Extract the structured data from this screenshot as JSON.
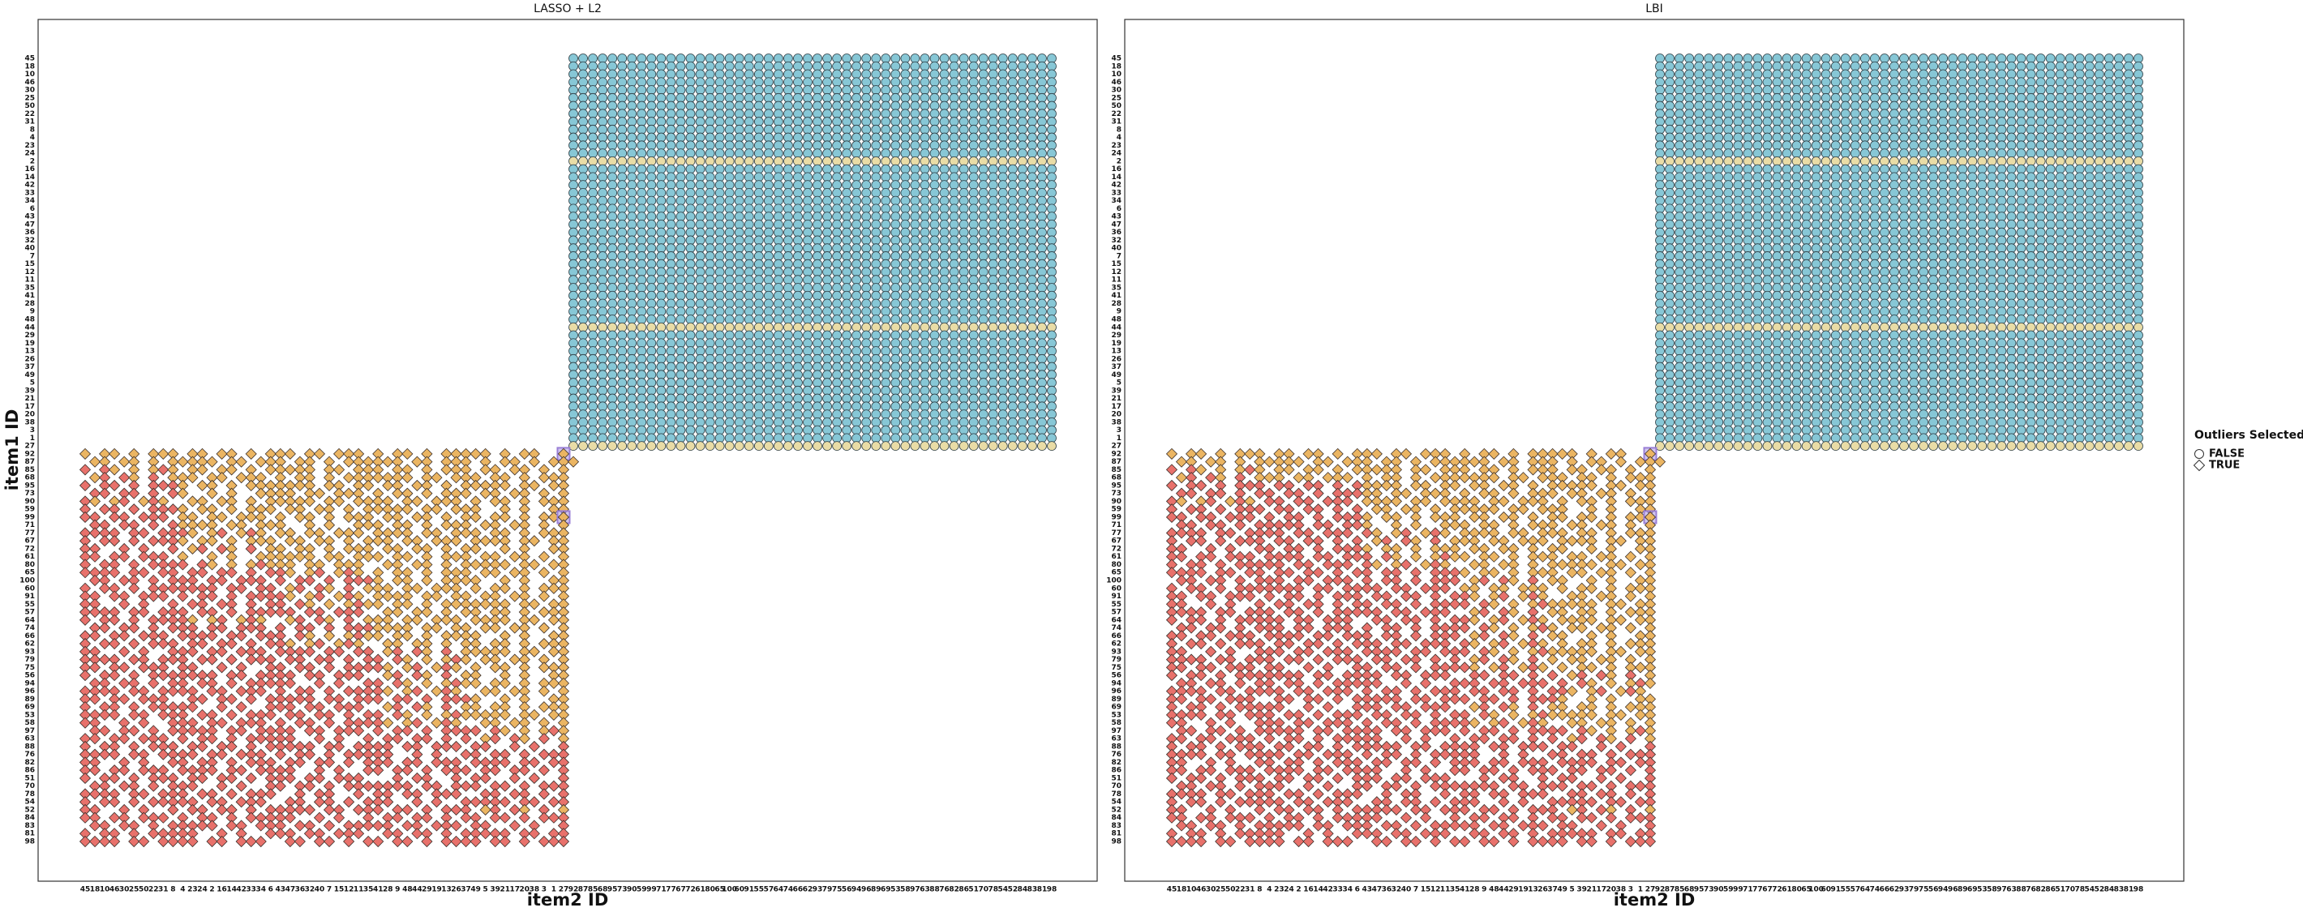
{
  "legend": {
    "title": "Outliers Selected",
    "entries": [
      "FALSE",
      "TRUE"
    ],
    "shapes": [
      "circle",
      "diamond"
    ]
  },
  "chart_data": [
    {
      "type": "matrix",
      "title": "LASSO + L2",
      "x_label": "item2 ID",
      "y_label": "item1 ID",
      "categories": [
        "45",
        "18",
        "10",
        "46",
        "30",
        "25",
        "50",
        "22",
        "31",
        "8",
        "4",
        "23",
        "24",
        "2",
        "16",
        "14",
        "42",
        "33",
        "34",
        "6",
        "43",
        "47",
        "36",
        "32",
        "40",
        "7",
        "15",
        "12",
        "11",
        "35",
        "41",
        "28",
        "9",
        "48",
        "44",
        "29",
        "19",
        "13",
        "26",
        "37",
        "49",
        "5",
        "39",
        "21",
        "17",
        "20",
        "38",
        "3",
        "1",
        "27",
        "92",
        "87",
        "85",
        "68",
        "95",
        "73",
        "90",
        "59",
        "99",
        "71",
        "77",
        "67",
        "72",
        "61",
        "80",
        "65",
        "100",
        "60",
        "91",
        "55",
        "57",
        "64",
        "74",
        "66",
        "62",
        "93",
        "79",
        "75",
        "56",
        "94",
        "96",
        "89",
        "69",
        "53",
        "58",
        "97",
        "63",
        "88",
        "76",
        "82",
        "86",
        "51",
        "70",
        "78",
        "54",
        "52",
        "84",
        "83",
        "81",
        "98"
      ],
      "upper_shape": "circle",
      "lower_shape": "diamond",
      "palette": {
        "c": "#87c7d6",
        "y": "#e9dca6",
        "o": "#ebb562",
        "r": "#e8716b",
        "p": "#ebb562"
      },
      "highlight": "#9a7fd6",
      "upper": [
        "cccccccccccccccccccccccccccccccccccccccccccccccccc",
        "cccccccccccccccccccccccccccccccccccccccccccccccccc",
        "cccccccccccccccccccccccccccccccccccccccccccccccccc",
        "cccccccccccccccccccccccccccccccccccccccccccccccccc",
        "cccccccccccccccccccccccccccccccccccccccccccccccccc",
        "cccccccccccccccccccccccccccccccccccccccccccccccccc",
        "cccccccccccccccccccccccccccccccccccccccccccccccccc",
        "cccccccccccccccccccccccccccccccccccccccccccccccccc",
        "cccccccccccccccccccccccccccccccccccccccccccccccccc",
        "cccccccccccccccccccccccccccccccccccccccccccccccccc",
        "cccccccccccccccccccccccccccccccccccccccccccccccccc",
        "cccccccccccccccccccccccccccccccccccccccccccccccccc",
        "cccccccccccccccccccccccccccccccccccccccccccccccccc",
        "yyyyyyyyyyyyyyyyyyyyyyyyyyyyyyyyyyyyyyyyyyyyyyyyyy",
        "cccccccccccccccccccccccccccccccccccccccccccccccccc",
        "cccccccccccccccccccccccccccccccccccccccccccccccccc",
        "cccccccccccccccccccccccccccccccccccccccccccccccccc",
        "cccccccccccccccccccccccccccccccccccccccccccccccccc",
        "cccccccccccccccccccccccccccccccccccccccccccccccccc",
        "cccccccccccccccccccccccccccccccccccccccccccccccccc",
        "cccccccccccccccccccccccccccccccccccccccccccccccccc",
        "cccccccccccccccccccccccccccccccccccccccccccccccccc",
        "cccccccccccccccccccccccccccccccccccccccccccccccccc",
        "cccccccccccccccccccccccccccccccccccccccccccccccccc",
        "cccccccccccccccccccccccccccccccccccccccccccccccccc",
        "cccccccccccccccccccccccccccccccccccccccccccccccccc",
        "cccccccccccccccccccccccccccccccccccccccccccccccccc",
        "cccccccccccccccccccccccccccccccccccccccccccccccccc",
        "cccccccccccccccccccccccccccccccccccccccccccccccccc",
        "cccccccccccccccccccccccccccccccccccccccccccccccccc",
        "cccccccccccccccccccccccccccccccccccccccccccccccccc",
        "cccccccccccccccccccccccccccccccccccccccccccccccccc",
        "cccccccccccccccccccccccccccccccccccccccccccccccccc",
        "cccccccccccccccccccccccccccccccccccccccccccccccccc",
        "yyyyyyyyyyyyyyyyyyyyyyyyyyyyyyyyyyyyyyyyyyyyyyyyyy",
        "cccccccccccccccccccccccccccccccccccccccccccccccccc",
        "cccccccccccccccccccccccccccccccccccccccccccccccccc",
        "cccccccccccccccccccccccccccccccccccccccccccccccccc",
        "cccccccccccccccccccccccccccccccccccccccccccccccccc",
        "cccccccccccccccccccccccccccccccccccccccccccccccccc",
        "cccccccccccccccccccccccccccccccccccccccccccccccccc",
        "cccccccccccccccccccccccccccccccccccccccccccccccccc",
        "cccccccccccccccccccccccccccccccccccccccccccccccccc",
        "cccccccccccccccccccccccccccccccccccccccccccccccccc",
        "cccccccccccccccccccccccccccccccccccccccccccccccccc",
        "cccccccccccccccccccccccccccccccccccccccccccccccccc",
        "cccccccccccccccccccccccccccccccccccccccccccccccccc",
        "cccccccccccccccccccccccccccccccccccccccccccccccccc",
        "cccccccccccccccccccccccccccccccccccccccccccccccccc",
        "yyyyyyyyyyyyyyyyyyyyyyyyyyyyyyyyyyyyyyyyyyyyyyyyyy"
      ],
      "lower": [
        "o.oo.o.ooo.oo.oo.o.ooo.oo.ooo.o.oo.o.ooooo.o.oo..p",
        ".oo.oo.o.ooooo.oo.ooo.oo.o.oooooo.oo.ooo.o.oo.o.ooo",
        "r.ro.o.oro.oo.oo.o.ooooo.oo.ooo.oo.o.ooo.oo.oo.o.o",
        ".or.ro.r.ooo.oo.ooo.o.oo.o.ooooooo.oo.ooo.oo.o.ooo",
        "r.rr.r.rrro.oo.o.ooooooo.oo.oo.oo.oo.o.ooooo.oo.oo",
        ".rr.rr.r.ro..o.o..oooo.oo.ooo.o.oo.o.ooo.oo.oo.o.o",
        "ro.or.oro..oo.oo.o.ooooo.oo.oooo.oo.ooo.o.oo.o.ooo",
        "r.rr.r.rrro.oo.o.ooo.oo.oo.o.ooooo.oo.ooo..o.o..oo",
        "rr.rr.rrr.oo.oo.ooo.o.oo.o.ooo.oo.oo.o.oo.oo.o.oop",
        ".rr.rr.r.roooo.oo.ooo..o.o..ooo.oo.o.ooo.oo.oo.o.o",
        "rrrr.rr.rrro.or.oro.oo.oo.ooo.oooo.oo.ooo.oo.o.ooo",
        "r.rr.r.rrro.oo.o.ooo.oo.oo.o.ooo.oo.ooo.oooo.oo.oo",
        "rr..r.r..r.or.ro.r.oo.oo.o.ooo.oo.oo.o.oo..o.o..oo",
        "rr.rr.rrr.o..o.o..oooooo.oo.ooo.oo.o.ooo.oo.oo.o.o",
        "r.rr.r.rrrr.ro.o.orooo.oo.ooo..oo.oo.o.ooooo.oo.oo",
        "rrrr.rr.rr.rr.rr.r.rro.or.oro.o.oo.o.ooo.oo.oo.o.o",
        ".rr.rr.r.rrr.rr.rrr.r.rr.r.rrro.oo.o.oooo..o.o..oo",
        "r.rr.r.rrrrrrr.rr.rr.or.ro.r.ooo.oo.ooo.o.oo.o.ooo",
        "rr.rr.rrr.r.rr.r.rrrro.or.oro.oooo.oo.oo.oo.oo.o.o",
        "rr..r.r..r.rr.rr.r.rr.ro.o.oroo.oo.o.ooooooo.oo.oo",
        "rrrr.rr.rrr.rr.r.rrrrr.rr.rrr..oo.oo.o.oo.oo.o.ooo",
        "r.rr.r.rrrro.or.oro..or.ro.r.ooo.oo.ooo.oooo.oo.oo",
        ".rr.rr.r.rrr.rr.rrr.r.rr.r.rrroooo.oo.oo.oo.oo.o.o",
        "rr.rr.rrr.rrrr.rr.rrr.ro.o.oroo.oo.o.oooo..o.o..oo",
        "r.rr.r.rrr.rr.rr.r.rro.or.oro..oo.oo.o.oo.oo.o.ooo",
        "rr..r.r..rrr.rr.rrr.rrrr.rr.rr.or.ro.r.ooooo.oo.oo",
        "rrrr.rr.rrr.rr.r.rrr.rr.rr.r.rr.ro.o.oro.oo.oo.o.o",
        "rr.rr.rrr.rr..r.r..rr.rr.r.rrrro.or.oro.o.oo.o.ooo",
        "r.rr.r.rrrrrrr.rr.rrrr.rr.rrr..or.ro.r.oo..o.o..oo",
        ".rr.rr.r.rr.rr.r.rrrrr..r.r..rr.ro.o.oroo.oo.o.ooo",
        "rrrr.rr.rrrr.rr.rrr.r.rr.r.rrrro.or.oro..oo.oo.o.o",
        "rr.rr.rrr..rr.rr.r.rrrrr.rr.rrr.rr.r.rrro..o.o..oo",
        "r.rr.r.rrrrr..r.r..rrr.rr.rrr..or.ro.r.oo.oo.o.ooo",
        "rrrr.rr.rrr.rr.r.rrr.rr.rr.r.rr.ro.o.orooooo.oo.oo",
        "rr..r.r..rrr.rr.rrr.r.rr.r.rrrro.or.oro..oo.oo.o.o",
        ".rr.rr.r.rrrrr.rr.rrrr.rr.rrr.r.rr.r.rrrr.ro.o.oro",
        "rr.rr.rrr.r.rr.r.rrrrr..r.r..r.rr.rr.r.r.or.ro.r.o",
        "r.rr.r.rrr.rr.rr.r.rrrrr.rr.rrrr.rr.rrr.rr..r.r..r",
        "rrrr.rr.rrrr.rr.rrr.r.rr.r.rrrrr..r.r..rr.rr.r.rrr",
        "rr..r.r..rr.rr.r.rrr.rr.rr.r.rrr.rr.rrr.rrrr.rr.rr",
        "rr.rr.rrr.rrrr.rr.rrrr..r.r..rr.rr.r.rrr.rr.rr.r.r",
        "r.rr.r.rrr.rr.rr.r.rrr.rr.rrr...r.rr..r.rr..r.r..r",
        ".rr.rr.r.rrr..r.r..rr.rr.r.rrrrrrr.rr.rrr.rr.r.rrr",
        "rrrr.rr.rrr.rr.r.rrr..r.rr..r.rr.rr.rrr..rr.rr.r.r",
        "r.rr.r.rrrrr.rr.rrr..rr.rr.r.rrr..r.r..rrrrr.rr.rr",
        "rr..r.r..r.rr.rr.r.rrrrr.rr.rrr.rr.r.rrr.or.ro.r.o",
        "rr.rr.rrr.r.rr.r.rrrrr..r.r..r.rr.rr.r.rr.rr.r.rrr",
        ".rr.rr.r.rrrrr.rr.rrr.rr.r.rrrrr.rr.rrr.rr..r.r..r",
        "r.rr.r.rrrrr..r.r..rrr.rr.rrr..rr.rr.r.rrrrr.rr.rr",
        "rrrr.rr.rrrr.rr.rrr..rr.rr.r.rr.rr.r.rrrr.rr.r.rrr"
      ]
    },
    {
      "type": "matrix",
      "title": "LBI",
      "x_label": "item2 ID",
      "categories": [
        "45",
        "18",
        "10",
        "46",
        "30",
        "25",
        "50",
        "22",
        "31",
        "8",
        "4",
        "23",
        "24",
        "2",
        "16",
        "14",
        "42",
        "33",
        "34",
        "6",
        "43",
        "47",
        "36",
        "32",
        "40",
        "7",
        "15",
        "12",
        "11",
        "35",
        "41",
        "28",
        "9",
        "48",
        "44",
        "29",
        "19",
        "13",
        "26",
        "37",
        "49",
        "5",
        "39",
        "21",
        "17",
        "20",
        "38",
        "3",
        "1",
        "27",
        "92",
        "87",
        "85",
        "68",
        "95",
        "73",
        "90",
        "59",
        "99",
        "71",
        "77",
        "67",
        "72",
        "61",
        "80",
        "65",
        "100",
        "60",
        "91",
        "55",
        "57",
        "64",
        "74",
        "66",
        "62",
        "93",
        "79",
        "75",
        "56",
        "94",
        "96",
        "89",
        "69",
        "53",
        "58",
        "97",
        "63",
        "88",
        "76",
        "82",
        "86",
        "51",
        "70",
        "78",
        "54",
        "52",
        "84",
        "83",
        "81",
        "98"
      ],
      "upper_shape": "circle",
      "lower_shape": "diamond",
      "palette": {
        "c": "#87c7d6",
        "y": "#e9dca6",
        "o": "#ebb562",
        "r": "#e8716b",
        "p": "#ebb562"
      },
      "highlight": "#9a7fd6",
      "upper": [
        "cccccccccccccccccccccccccccccccccccccccccccccccccc",
        "cccccccccccccccccccccccccccccccccccccccccccccccccc",
        "cccccccccccccccccccccccccccccccccccccccccccccccccc",
        "cccccccccccccccccccccccccccccccccccccccccccccccccc",
        "cccccccccccccccccccccccccccccccccccccccccccccccccc",
        "cccccccccccccccccccccccccccccccccccccccccccccccccc",
        "cccccccccccccccccccccccccccccccccccccccccccccccccc",
        "cccccccccccccccccccccccccccccccccccccccccccccccccc",
        "cccccccccccccccccccccccccccccccccccccccccccccccccc",
        "cccccccccccccccccccccccccccccccccccccccccccccccccc",
        "cccccccccccccccccccccccccccccccccccccccccccccccccc",
        "cccccccccccccccccccccccccccccccccccccccccccccccccc",
        "cccccccccccccccccccccccccccccccccccccccccccccccccc",
        "yyyyyyyyyyyyyyyyyyyyyyyyyyyyyyyyyyyyyyyyyyyyyyyyyy",
        "cccccccccccccccccccccccccccccccccccccccccccccccccc",
        "cccccccccccccccccccccccccccccccccccccccccccccccccc",
        "cccccccccccccccccccccccccccccccccccccccccccccccccc",
        "cccccccccccccccccccccccccccccccccccccccccccccccccc",
        "cccccccccccccccccccccccccccccccccccccccccccccccccc",
        "cccccccccccccccccccccccccccccccccccccccccccccccccc",
        "cccccccccccccccccccccccccccccccccccccccccccccccccc",
        "cccccccccccccccccccccccccccccccccccccccccccccccccc",
        "cccccccccccccccccccccccccccccccccccccccccccccccccc",
        "cccccccccccccccccccccccccccccccccccccccccccccccccc",
        "cccccccccccccccccccccccccccccccccccccccccccccccccc",
        "cccccccccccccccccccccccccccccccccccccccccccccccccc",
        "cccccccccccccccccccccccccccccccccccccccccccccccccc",
        "cccccccccccccccccccccccccccccccccccccccccccccccccc",
        "cccccccccccccccccccccccccccccccccccccccccccccccccc",
        "cccccccccccccccccccccccccccccccccccccccccccccccccc",
        "cccccccccccccccccccccccccccccccccccccccccccccccccc",
        "cccccccccccccccccccccccccccccccccccccccccccccccccc",
        "cccccccccccccccccccccccccccccccccccccccccccccccccc",
        "cccccccccccccccccccccccccccccccccccccccccccccccccc",
        "yyyyyyyyyyyyyyyyyyyyyyyyyyyyyyyyyyyyyyyyyyyyyyyyyy",
        "cccccccccccccccccccccccccccccccccccccccccccccccccc",
        "cccccccccccccccccccccccccccccccccccccccccccccccccc",
        "cccccccccccccccccccccccccccccccccccccccccccccccccc",
        "cccccccccccccccccccccccccccccccccccccccccccccccccc",
        "cccccccccccccccccccccccccccccccccccccccccccccccccc",
        "cccccccccccccccccccccccccccccccccccccccccccccccccc",
        "cccccccccccccccccccccccccccccccccccccccccccccccccc",
        "cccccccccccccccccccccccccccccccccccccccccccccccccc",
        "cccccccccccccccccccccccccccccccccccccccccccccccccc",
        "cccccccccccccccccccccccccccccccccccccccccccccccccc",
        "cccccccccccccccccccccccccccccccccccccccccccccccccc",
        "cccccccccccccccccccccccccccccccccccccccccccccccccc",
        "cccccccccccccccccccccccccccccccccccccccccccccccccc",
        "cccccccccccccccccccccccccccccccccccccccccccccccccc",
        "yyyyyyyyyyyyyyyyyyyyyyyyyyyyyyyyyyyyyyyyyyyyyyyyyy"
      ],
      "lower": [
        "o.oo.o.ooo.oo.oo.o.ooo.oo.ooo.o.oo.o.ooooo.o.oo..p",
        ".oo.oo.o.ooooo.oo.ooo.oo.o.oooooo.oo.ooo.o.oo.o.ooo",
        "r.ro.o.oro.oo.oo.o.ooooo.oo.ooo.oo.o.ooo.oo.oo.o.o",
        ".or.ro.r.ooo.oo.ooo.o.oo.o.ooooooo.oo.ooo.oo.o.ooo",
        "r.rr.r.rrr.rr.rr.r.roooo.oo.oo.oo.oo.o.ooooo.oo.oo",
        ".rr.rr.r.rr.rr.r.rrroo.oo.ooo.o.oo.o.ooo.oo.oo.o.o",
        "ro.or.oro.rr.rr.rrr.oooo.oo.oooo.oo.ooo.o.oo.o.ooo",
        "r.rr.r.rrr.rr.rr.r.r.oo.oo.o.ooooo.oo.ooo..o.o..oo",
        "rr.rr.rrr.r.rr.r.rrro.oo.o.ooo.oo.oo.o.oo.oo.o.oop",
        ".rr.rr.r.rrrrr.rr.rro..o.o..ooo.oo.o.ooo.oo.oo.o.o",
        "rrrr.rr.rrrr.rr.rrr.ro.or.oro.oooo.oo.ooo.oo.o.ooo",
        "r.rr.r.rrr.rr.rr.r.r.or.ro.r.ooo.oo.ooo.oooo.oo.oo",
        "rr..r.r..rr.rr.r.rrro.oo.o.ooo.oo.oo.o.oo..o.o..oo",
        "rr.rr.rrr.rrrr.rr.rrr.ro.o.oroo.oo.o.ooo.oo.oo.o.o",
        "r.rr.r.rrrrr.rr.rrr.ro.or.oro..oo.oo.o.ooooo.oo.oo",
        "rrrr.rr.rr.rr.rr.r.rr.rr.r.rrro.oo.o.ooo.oo.oo.o.o",
        ".rr.rr.r.rrr.rr.rrr.r.rr.r.rrr.or.ro.r.oo..o.o..oo",
        "r.rr.r.rrrrrrr.rr.rrrr.rr.rrr.oo.oo.ooo.o.oo.o.ooo",
        "rr.rr.rrr.r.rr.r.rrr.rr.rr.r.rro.or.oro..oo.oo.o.o",
        "rr..r.r..r.rr.rr.r.rr.rr.r.rrrr.ro.o.orooooo.oo.oo",
        "rrrr.rr.rrr.rr.r.rrrrr.rr.rrr..or.ro.r.oo.oo.o.ooo",
        "r.rr.r.rrrrr.rr.rrr..rr.rr.r.rro.or.oro.oooo.oo.oo",
        ".rr.rr.r.rrr.rr.rrr.r.rr.r.rrrr.ro.o.oro.oo.oo.o.o",
        "rr.rr.rrr.rrrr.rr.rrr.rr.r.rrr.or.ro.r.oo..o.o..oo",
        "r.rr.r.rrr.rr.rr.r.rrr.rr.rrr.ro.or.oro.o.oo.o.ooo",
        "rr..r.r..rrr.rr.rrr.rrrr.rr.rrr.ro.o.orooooo.oo.oo",
        "rrrr.rr.rrr.rr.r.rrr.rr.rr.r.r.or.ro.r.o.oo.oo.o.o",
        "rr.rr.rrr.rr..r.r..rr.rr.r.rrrro.or.oro.o.oo.o.ooo",
        "r.rr.r.rrrrrrr.rr.rrrr.rr.rrr..rr.rr.r.r.or.ro.r.o",
        ".rr.rr.r.rr.rr.r.rrrrr..r.r..rrr.rr.rrr.r.ro.o.oro",
        "rrrr.rr.rrrr.rr.rrr.r.rr.r.rrr.rr.rr.r.rro.or.oro.",
        "rr.rr.rrr..rr.rr.r.rrrrr.rr.rrr.rr.r.rrro..o.o..oo",
        "r.rr.r.rrrrr..r.r..rrr.rr.rrr..or.ro.r.oo.oo.o.ooo",
        "rrrr.rr.rrr.rr.r.rrr.rr.rr.r.rr.ro.o.orooooo.oo.oo",
        "rr..r.r..rrr.rr.rrr.r.rr.r.rrrro.or.oro..oo.oo.o.o",
        ".rr.rr.r.rrrrr.rr.rrrr.rr.rrr.r.rr.r.rrrr.ro.o.oro",
        "rr.rr.rrr.r.rr.r.rrrrr..r.r..r.rr.rr.r.r.or.ro.r.o",
        "r.rr.r.rrr.rr.rr.r.rrrrr.rr.rrrr.rr.rrr.rr..r.r..r",
        "rrrr.rr.rrrr.rr.rrr.r.rr.r.rrrrr..r.r..rr.rr.r.rrr",
        "rr..r.r..rr.rr.r.rrr.rr.rr.r.rrr.rr.rrr.rrrr.rr.rr",
        "rr.rr.rrr.rrrr.rr.rrrr..r.r..rr.rr.r.rrr.rr.rr.r.r",
        "r.rr.r.rrr.rr.rr.r.rrr.rr.rrr...r.rr..r.rr..r.r..r",
        ".rr.rr.r.rrr..r.r..rr.rr.r.rrrrrrr.rr.rrr.rr.r.rrr",
        "rrrr.rr.rrr.rr.r.rrr..r.rr..r.rr.rr.rrr..rr.rr.r.r",
        "r.rr.r.rrrrr.rr.rrr..rr.rr.r.rrr..r.r..rrrrr.rr.rr",
        "rr..r.r..r.rr.rr.r.rrrrr.rr.rrr.rr.r.rrr.or.ro.r.o",
        "rr.rr.rrr.r.rr.r.rrrrr..r.r..r.rr.rr.r.rr.rr.r.rrr",
        ".rr.rr.r.rrrrr.rr.rrr.rr.r.rrrrr.rr.rrr.rr..r.r..r",
        "r.rr.r.rrrrr..r.r..rrr.rr.rrr..rr.rr.r.rrrrr.rr.rr",
        "rrrr.rr.rrrr.rr.rrr..rr.rr.r.rr.rr.r.rrrr.rr.r.rrr"
      ]
    }
  ]
}
